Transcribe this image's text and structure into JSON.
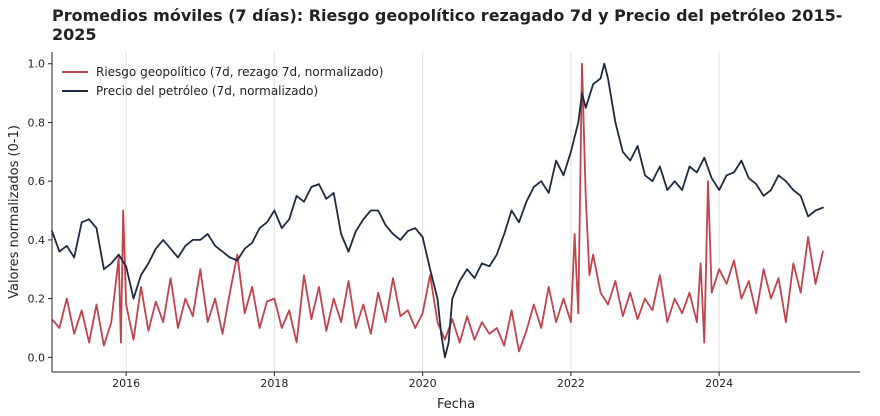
{
  "chart_data": {
    "type": "line",
    "title": "Promedios móviles (7 días): Riesgo geopolítico rezagado 7d y Precio del petróleo 2015-2025",
    "xlabel": "Fecha",
    "ylabel": "Valores normalizados (0-1)",
    "xlim": [
      2015.0,
      2025.9
    ],
    "ylim": [
      -0.05,
      1.04
    ],
    "xticks": [
      "2016",
      "2018",
      "2020",
      "2022",
      "2024"
    ],
    "xtick_values": [
      2016,
      2018,
      2020,
      2022,
      2024
    ],
    "yticks": [
      "0.0",
      "0.2",
      "0.4",
      "0.6",
      "0.8",
      "1.0"
    ],
    "ytick_values": [
      0.0,
      0.2,
      0.4,
      0.6,
      0.8,
      1.0
    ],
    "grid": "vertical-only",
    "legend_position": "top-left",
    "series": [
      {
        "name": "Riesgo geopolítico (7d, rezago 7d, normalizado)",
        "color": "#c0434d",
        "x": [
          2015.0,
          2015.1,
          2015.2,
          2015.3,
          2015.4,
          2015.5,
          2015.6,
          2015.7,
          2015.8,
          2015.9,
          2015.93,
          2015.96,
          2016.0,
          2016.1,
          2016.2,
          2016.3,
          2016.4,
          2016.5,
          2016.6,
          2016.7,
          2016.8,
          2016.9,
          2017.0,
          2017.1,
          2017.2,
          2017.3,
          2017.4,
          2017.5,
          2017.6,
          2017.7,
          2017.8,
          2017.9,
          2018.0,
          2018.1,
          2018.2,
          2018.3,
          2018.4,
          2018.5,
          2018.6,
          2018.7,
          2018.8,
          2018.9,
          2019.0,
          2019.1,
          2019.2,
          2019.3,
          2019.4,
          2019.5,
          2019.6,
          2019.7,
          2019.8,
          2019.9,
          2020.0,
          2020.1,
          2020.2,
          2020.3,
          2020.4,
          2020.5,
          2020.6,
          2020.7,
          2020.8,
          2020.9,
          2021.0,
          2021.1,
          2021.2,
          2021.3,
          2021.4,
          2021.5,
          2021.6,
          2021.7,
          2021.8,
          2021.9,
          2022.0,
          2022.05,
          2022.1,
          2022.15,
          2022.2,
          2022.25,
          2022.3,
          2022.4,
          2022.5,
          2022.6,
          2022.7,
          2022.8,
          2022.9,
          2023.0,
          2023.1,
          2023.2,
          2023.3,
          2023.4,
          2023.5,
          2023.6,
          2023.7,
          2023.75,
          2023.8,
          2023.85,
          2023.9,
          2024.0,
          2024.1,
          2024.2,
          2024.3,
          2024.4,
          2024.5,
          2024.6,
          2024.7,
          2024.8,
          2024.9,
          2025.0,
          2025.1,
          2025.2,
          2025.3,
          2025.4
        ],
        "y": [
          0.13,
          0.1,
          0.2,
          0.08,
          0.16,
          0.05,
          0.18,
          0.04,
          0.12,
          0.34,
          0.05,
          0.5,
          0.18,
          0.06,
          0.24,
          0.09,
          0.19,
          0.12,
          0.27,
          0.1,
          0.2,
          0.14,
          0.3,
          0.12,
          0.2,
          0.08,
          0.22,
          0.35,
          0.15,
          0.24,
          0.1,
          0.19,
          0.2,
          0.1,
          0.16,
          0.05,
          0.28,
          0.13,
          0.24,
          0.09,
          0.2,
          0.12,
          0.26,
          0.1,
          0.18,
          0.08,
          0.22,
          0.12,
          0.27,
          0.14,
          0.16,
          0.1,
          0.15,
          0.28,
          0.12,
          0.06,
          0.13,
          0.05,
          0.14,
          0.06,
          0.12,
          0.08,
          0.1,
          0.04,
          0.16,
          0.02,
          0.09,
          0.18,
          0.1,
          0.24,
          0.12,
          0.2,
          0.12,
          0.42,
          0.15,
          1.0,
          0.55,
          0.28,
          0.35,
          0.22,
          0.18,
          0.26,
          0.14,
          0.22,
          0.13,
          0.2,
          0.16,
          0.28,
          0.12,
          0.2,
          0.15,
          0.22,
          0.12,
          0.32,
          0.05,
          0.6,
          0.22,
          0.3,
          0.25,
          0.33,
          0.2,
          0.26,
          0.15,
          0.3,
          0.2,
          0.27,
          0.12,
          0.32,
          0.22,
          0.41,
          0.25,
          0.36
        ]
      },
      {
        "name": "Precio del petróleo (7d, normalizado)",
        "color": "#1e2a3f",
        "x": [
          2015.0,
          2015.1,
          2015.2,
          2015.3,
          2015.4,
          2015.5,
          2015.6,
          2015.7,
          2015.8,
          2015.9,
          2016.0,
          2016.1,
          2016.2,
          2016.3,
          2016.4,
          2016.5,
          2016.6,
          2016.7,
          2016.8,
          2016.9,
          2017.0,
          2017.1,
          2017.2,
          2017.3,
          2017.4,
          2017.5,
          2017.6,
          2017.7,
          2017.8,
          2017.9,
          2018.0,
          2018.1,
          2018.2,
          2018.3,
          2018.4,
          2018.5,
          2018.6,
          2018.7,
          2018.8,
          2018.9,
          2019.0,
          2019.1,
          2019.2,
          2019.3,
          2019.4,
          2019.5,
          2019.6,
          2019.7,
          2019.8,
          2019.9,
          2020.0,
          2020.1,
          2020.2,
          2020.25,
          2020.3,
          2020.35,
          2020.4,
          2020.5,
          2020.6,
          2020.7,
          2020.8,
          2020.9,
          2021.0,
          2021.1,
          2021.2,
          2021.3,
          2021.4,
          2021.5,
          2021.6,
          2021.7,
          2021.8,
          2021.9,
          2022.0,
          2022.1,
          2022.15,
          2022.2,
          2022.3,
          2022.4,
          2022.45,
          2022.5,
          2022.6,
          2022.7,
          2022.8,
          2022.9,
          2023.0,
          2023.1,
          2023.2,
          2023.3,
          2023.4,
          2023.5,
          2023.6,
          2023.7,
          2023.8,
          2023.9,
          2024.0,
          2024.1,
          2024.2,
          2024.3,
          2024.4,
          2024.5,
          2024.6,
          2024.7,
          2024.8,
          2024.9,
          2025.0,
          2025.1,
          2025.2,
          2025.3,
          2025.4
        ],
        "y": [
          0.43,
          0.36,
          0.38,
          0.34,
          0.46,
          0.47,
          0.44,
          0.3,
          0.32,
          0.35,
          0.31,
          0.2,
          0.28,
          0.32,
          0.37,
          0.4,
          0.37,
          0.34,
          0.38,
          0.4,
          0.4,
          0.42,
          0.38,
          0.36,
          0.34,
          0.33,
          0.37,
          0.39,
          0.44,
          0.46,
          0.5,
          0.44,
          0.47,
          0.55,
          0.53,
          0.58,
          0.59,
          0.54,
          0.56,
          0.42,
          0.36,
          0.43,
          0.47,
          0.5,
          0.5,
          0.45,
          0.42,
          0.4,
          0.43,
          0.44,
          0.41,
          0.3,
          0.2,
          0.08,
          0.0,
          0.05,
          0.2,
          0.26,
          0.3,
          0.27,
          0.32,
          0.31,
          0.35,
          0.42,
          0.5,
          0.46,
          0.53,
          0.58,
          0.6,
          0.56,
          0.67,
          0.62,
          0.7,
          0.8,
          0.9,
          0.85,
          0.93,
          0.95,
          1.0,
          0.95,
          0.8,
          0.7,
          0.67,
          0.72,
          0.62,
          0.6,
          0.65,
          0.57,
          0.6,
          0.57,
          0.65,
          0.63,
          0.68,
          0.61,
          0.57,
          0.62,
          0.63,
          0.67,
          0.61,
          0.59,
          0.55,
          0.57,
          0.62,
          0.6,
          0.57,
          0.55,
          0.48,
          0.5,
          0.51
        ]
      }
    ]
  }
}
